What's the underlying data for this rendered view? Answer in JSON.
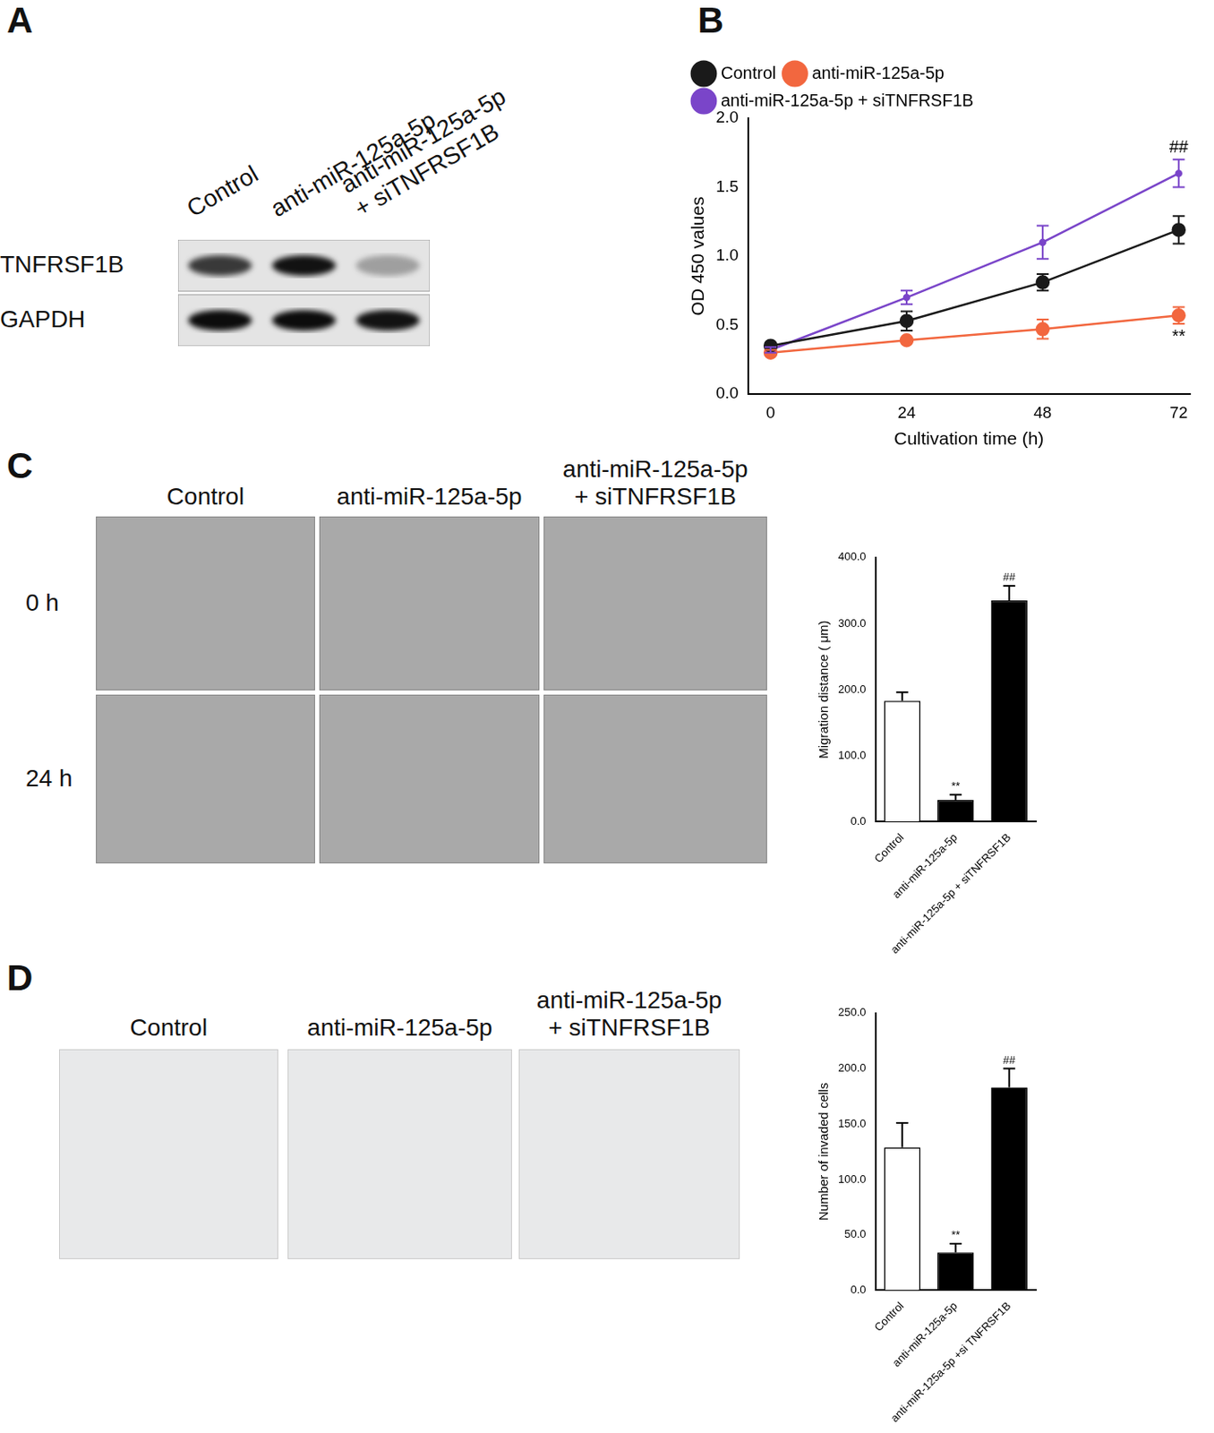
{
  "figure": {
    "panel_labels": [
      "A",
      "B",
      "C",
      "D"
    ],
    "A": {
      "columns": [
        [
          "Control"
        ],
        [
          "anti-miR-125a-5p"
        ],
        [
          "anti-miR-125a-5p",
          "+ siTNFRSF1B"
        ]
      ],
      "rows": [
        {
          "label": "TNFRSF1B",
          "band_intensity": [
            0.75,
            0.92,
            0.3
          ]
        },
        {
          "label": "GAPDH",
          "band_intensity": [
            0.95,
            0.95,
            0.92
          ]
        }
      ]
    },
    "C": {
      "columns": [
        [
          "Control"
        ],
        [
          "anti-miR-125a-5p"
        ],
        [
          "anti-miR-125a-5p",
          "+ siTNFRSF1B"
        ]
      ],
      "rows": [
        "0 h",
        "24 h"
      ]
    },
    "D": {
      "columns": [
        [
          "Control"
        ],
        [
          "anti-miR-125a-5p"
        ],
        [
          "anti-miR-125a-5p",
          "+ siTNFRSF1B"
        ]
      ]
    }
  },
  "chart_data": [
    {
      "type": "line",
      "x_label": "Cultivation time (h)",
      "y_label": "OD 450 values",
      "x": [
        0,
        24,
        48,
        72
      ],
      "series": [
        {
          "name": "Control",
          "color": "#1a1a1a",
          "marker": "circle",
          "values": [
            0.35,
            0.53,
            0.81,
            1.19
          ],
          "errors": [
            0.02,
            0.07,
            0.06,
            0.1
          ]
        },
        {
          "name": "anti-miR-125a-5p",
          "color": "#f2673f",
          "marker": "circle",
          "values": [
            0.3,
            0.39,
            0.47,
            0.57
          ],
          "errors": [
            0.02,
            0.02,
            0.07,
            0.06
          ]
        },
        {
          "name": "anti-miR-125a-5p + siTNFRSF1B",
          "color": "#7a45c9",
          "marker": "dot",
          "values": [
            0.32,
            0.7,
            1.1,
            1.6
          ],
          "errors": [
            0.02,
            0.05,
            0.12,
            0.1
          ]
        }
      ],
      "annotations": [
        {
          "text": "##",
          "series": "anti-miR-125a-5p + siTNFRSF1B",
          "x": 72
        },
        {
          "text": "**",
          "series": "anti-miR-125a-5p",
          "x": 72
        }
      ],
      "xlim": [
        -4,
        74
      ],
      "xticks": [
        0,
        24,
        48,
        72
      ],
      "ylim": [
        0,
        2
      ],
      "yticks": [
        {
          "value": 0,
          "label": "0.0"
        },
        0.5,
        {
          "value": 1,
          "label": "1.0"
        },
        1.5,
        {
          "value": 2,
          "label": "2.0"
        }
      ],
      "grid": false,
      "legend": "upper left"
    },
    {
      "type": "bar",
      "y_label": "Migration distance ( μm)",
      "categories": [
        "Control",
        "anti-miR-125a-5p",
        "anti-miR-125a-5p + siTNFRSF1B"
      ],
      "values": [
        183,
        33,
        335
      ],
      "errors": [
        13,
        8,
        22
      ],
      "colors": [
        "#ffffff",
        "#000000",
        "#000000"
      ],
      "annotations": [
        {
          "text": "**",
          "category": "anti-miR-125a-5p"
        },
        {
          "text": "##",
          "category": "anti-miR-125a-5p + siTNFRSF1B"
        }
      ],
      "ylim": [
        0,
        400
      ],
      "yticks": [
        {
          "value": 0,
          "label": "0.0"
        },
        {
          "value": 100,
          "label": "100.0"
        },
        {
          "value": 200,
          "label": "200.0"
        },
        {
          "value": 300,
          "label": "300.0"
        },
        {
          "value": 400,
          "label": "400.0"
        }
      ],
      "grid": false
    },
    {
      "type": "bar",
      "y_label": "Number of invaded cells",
      "categories": [
        "Control",
        "anti-miR-125a-5p",
        "anti-miR-125a-5p +si TNFRSF1B"
      ],
      "values": [
        129,
        34,
        183
      ],
      "errors": [
        22,
        8,
        17
      ],
      "colors": [
        "#ffffff",
        "#000000",
        "#000000"
      ],
      "annotations": [
        {
          "text": "**",
          "category": "anti-miR-125a-5p"
        },
        {
          "text": "##",
          "category": "anti-miR-125a-5p +si TNFRSF1B"
        }
      ],
      "ylim": [
        0,
        250
      ],
      "yticks": [
        {
          "value": 0,
          "label": "0.0"
        },
        {
          "value": 50,
          "label": "50.0"
        },
        {
          "value": 100,
          "label": "100.0"
        },
        {
          "value": 150,
          "label": "150.0"
        },
        {
          "value": 200,
          "label": "200.0"
        },
        {
          "value": 250,
          "label": "250.0"
        }
      ],
      "grid": false
    }
  ]
}
